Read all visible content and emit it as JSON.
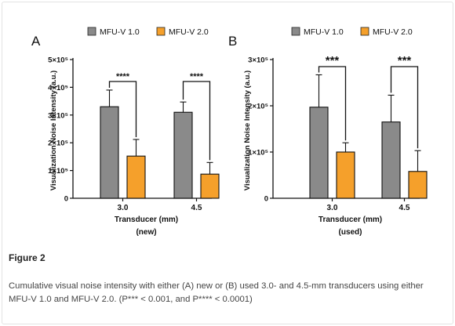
{
  "figure": {
    "label": "Figure 2",
    "caption": "Cumulative visual noise intensity with either (A) new or (B) used 3.0- and 4.5-mm transducers using either MFU-V 1.0 and MFU-V 2.0. (P*** < 0.001, and P**** < 0.0001)"
  },
  "colors": {
    "mfu_v1": "#8a8a8a",
    "mfu_v2": "#f5a02b"
  },
  "chart_data": [
    {
      "panel": "A",
      "type": "bar",
      "categories": [
        "3.0",
        "4.5"
      ],
      "series": [
        {
          "name": "MFU-V 1.0",
          "values": [
            330000,
            310000
          ],
          "errors": [
            60000,
            37000
          ]
        },
        {
          "name": "MFU-V 2.0",
          "values": [
            152000,
            87000
          ],
          "errors": [
            60000,
            42000
          ]
        }
      ],
      "ylim": [
        0,
        500000
      ],
      "ytick_values": [
        0,
        100000,
        200000,
        300000,
        400000,
        500000
      ],
      "ytick_labels": [
        "0",
        "1×10⁵",
        "2×10⁵",
        "3×10⁵",
        "4×10⁵",
        "5×10⁵"
      ],
      "ylabel": "Visualization Noise Intensity (a.u.)",
      "xlabel": "Transducer (mm)",
      "subtitle": "(new)",
      "significance": [
        "****",
        "****"
      ],
      "legend": "top"
    },
    {
      "panel": "B",
      "type": "bar",
      "categories": [
        "3.0",
        "4.5"
      ],
      "series": [
        {
          "name": "MFU-V 1.0",
          "values": [
            197000,
            165000
          ],
          "errors": [
            70000,
            58000
          ]
        },
        {
          "name": "MFU-V 2.0",
          "values": [
            100000,
            58000
          ],
          "errors": [
            20000,
            45000
          ]
        }
      ],
      "ylim": [
        0,
        300000
      ],
      "ytick_values": [
        0,
        100000,
        200000,
        300000
      ],
      "ytick_labels": [
        "0",
        "1×10⁵",
        "2×10⁵",
        "3×10⁵"
      ],
      "ylabel": "Visualization Noise Intensity (a.u.)",
      "xlabel": "Transducer (mm)",
      "subtitle": "(used)",
      "significance": [
        "***",
        "***"
      ],
      "legend": "top"
    }
  ]
}
